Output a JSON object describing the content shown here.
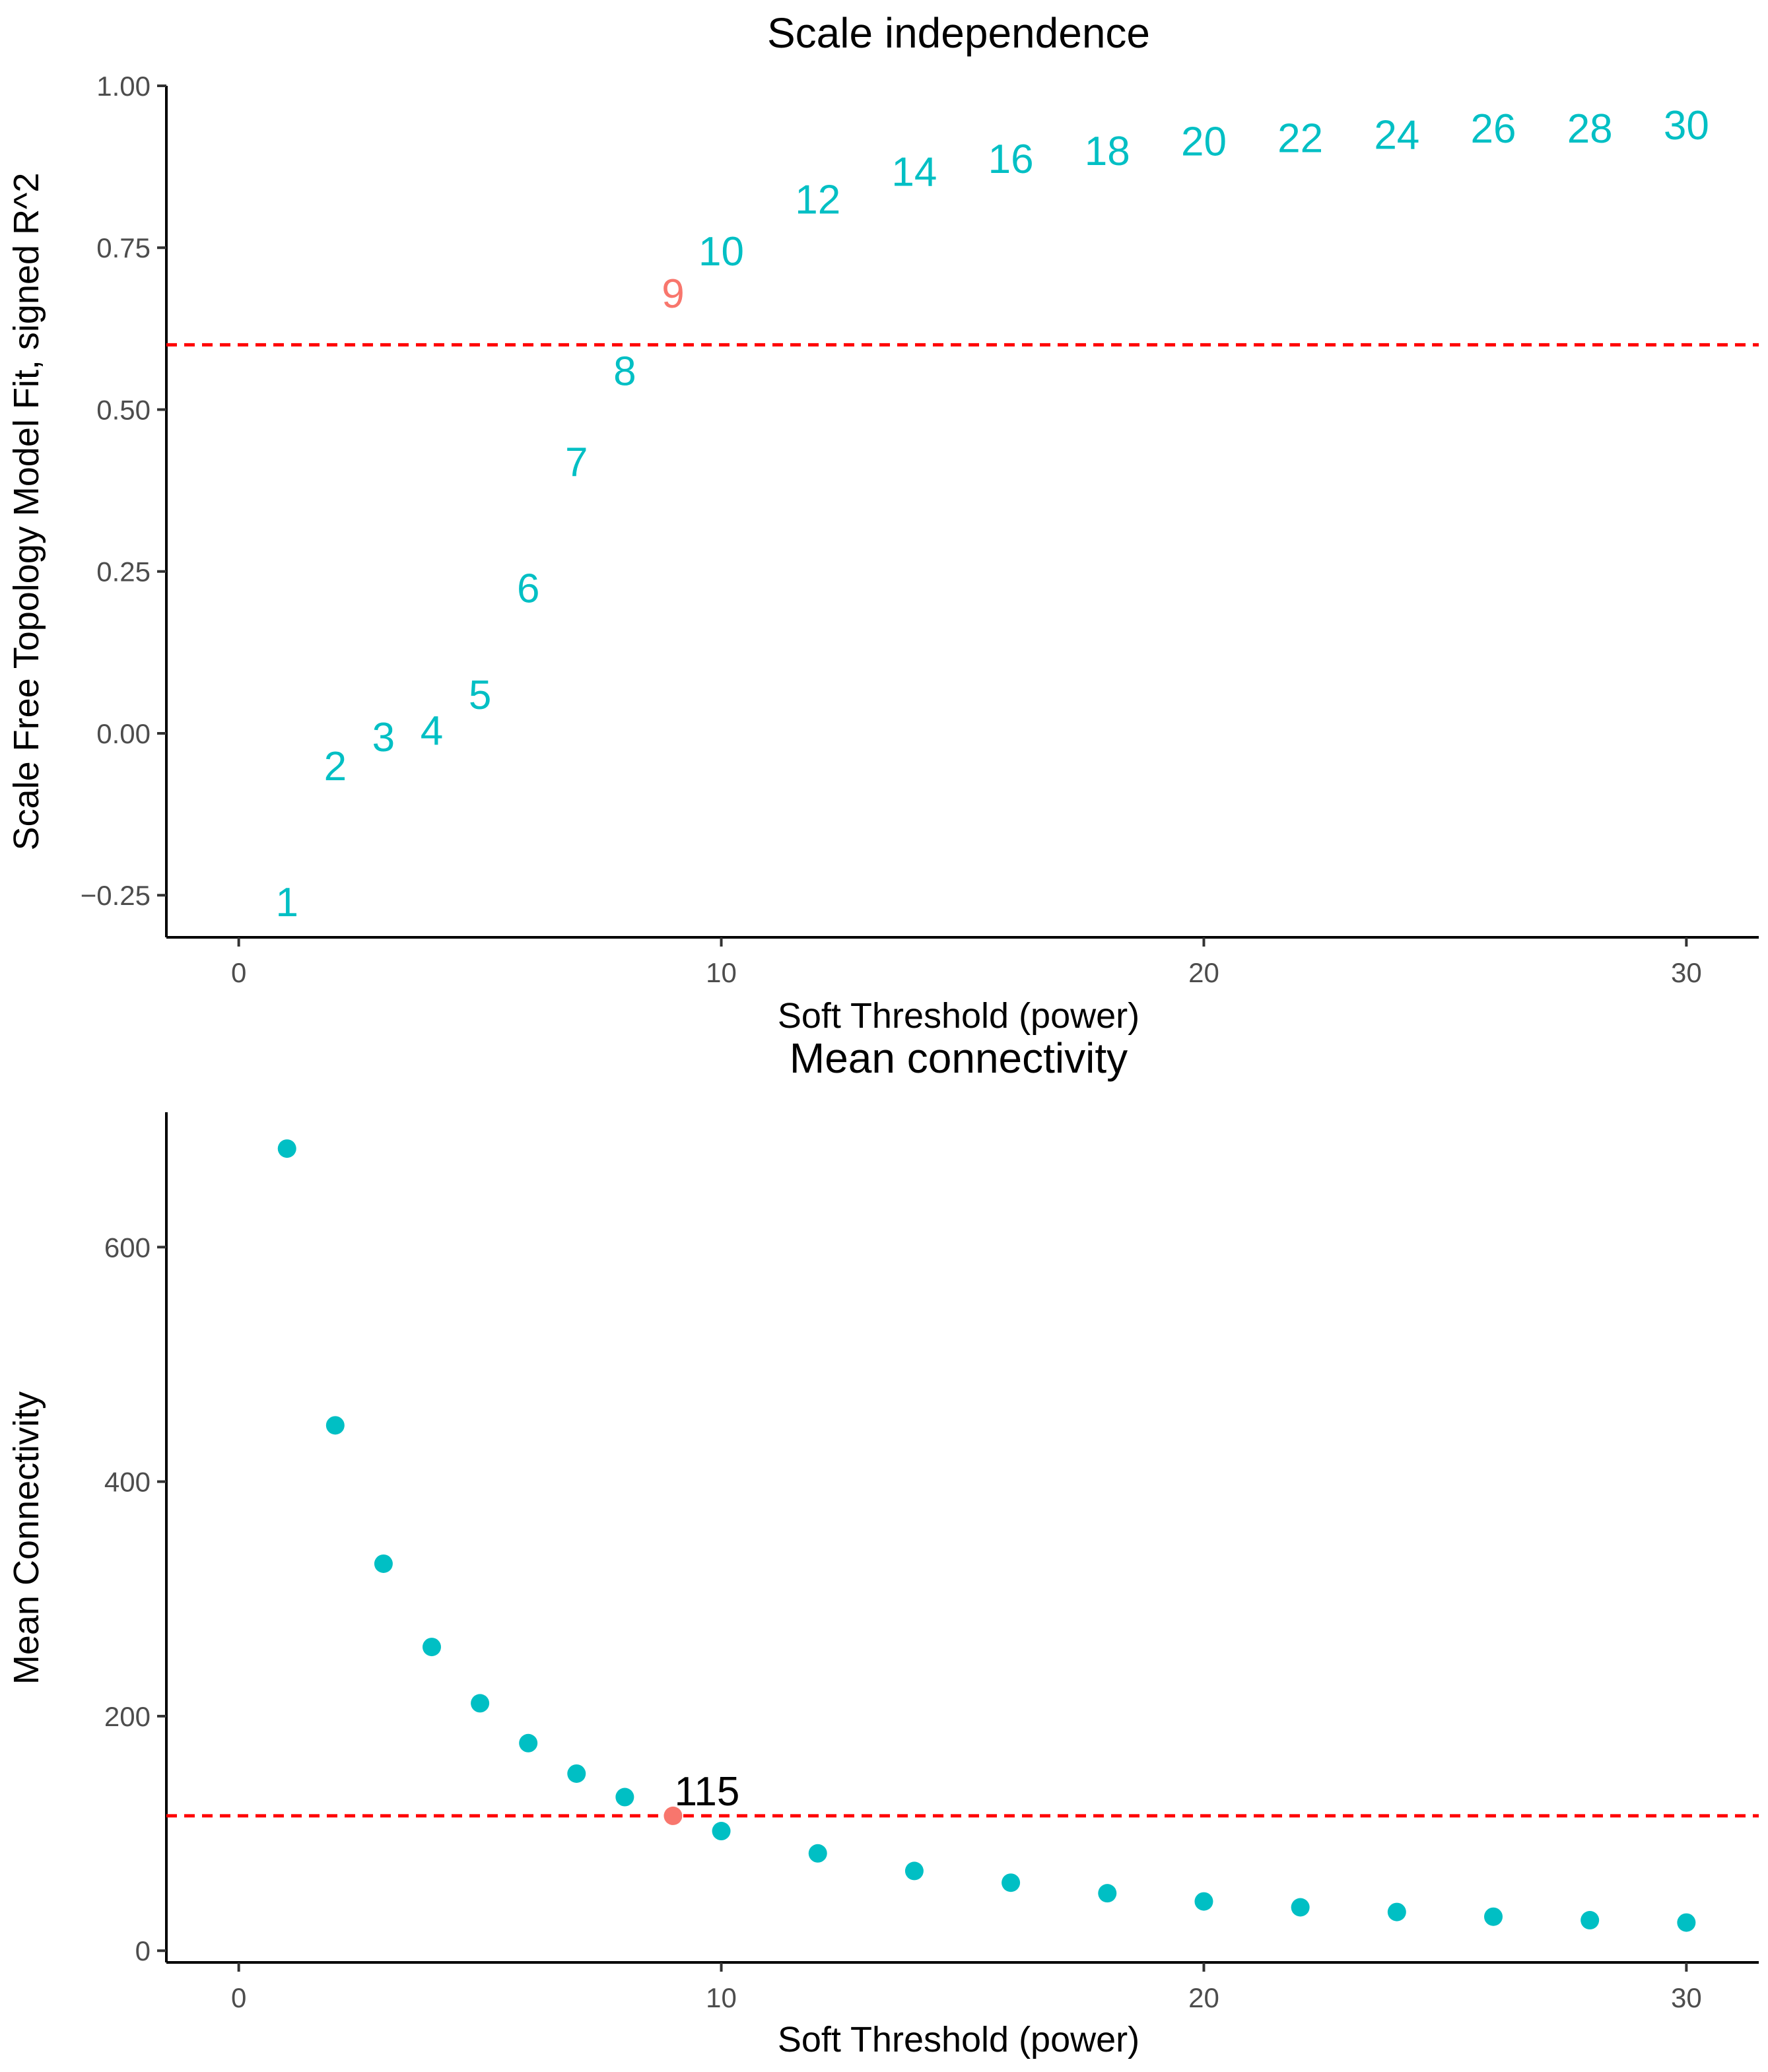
{
  "chart_data": [
    {
      "type": "scatter",
      "title": "Scale independence",
      "xlabel": "Soft Threshold (power)",
      "ylabel": "Scale Free Topology Model Fit, signed R^2",
      "xlim": [
        -1.5,
        31.5
      ],
      "ylim": [
        -0.315,
        1.0
      ],
      "xticks": [
        0,
        10,
        20,
        30
      ],
      "xtick_labels": [
        "0",
        "10",
        "20",
        "30"
      ],
      "yticks": [
        -0.25,
        0.0,
        0.25,
        0.5,
        0.75,
        1.0
      ],
      "ytick_labels": [
        "−0.25",
        "0.00",
        "0.25",
        "0.50",
        "0.75",
        "1.00"
      ],
      "marker": "text",
      "x": [
        1,
        2,
        3,
        4,
        5,
        6,
        7,
        8,
        9,
        10,
        12,
        14,
        16,
        18,
        20,
        22,
        24,
        26,
        28,
        30
      ],
      "y": [
        -0.26,
        -0.05,
        -0.005,
        0.005,
        0.06,
        0.225,
        0.42,
        0.56,
        0.68,
        0.745,
        0.825,
        0.868,
        0.888,
        0.9,
        0.915,
        0.92,
        0.925,
        0.935,
        0.935,
        0.94
      ],
      "labels": [
        "1",
        "2",
        "3",
        "4",
        "5",
        "6",
        "7",
        "8",
        "9",
        "10",
        "12",
        "14",
        "16",
        "18",
        "20",
        "22",
        "24",
        "26",
        "28",
        "30"
      ],
      "highlight_index": 8,
      "threshold": 0.6,
      "colors": {
        "points": "#00bfc4",
        "highlight": "#f8766d",
        "threshold": "#ff0000"
      },
      "grid": false
    },
    {
      "type": "scatter",
      "title": "Mean connectivity",
      "xlabel": "Soft Threshold (power)",
      "ylabel": "Mean Connectivity",
      "xlim": [
        -1.5,
        31.5
      ],
      "ylim": [
        -10,
        715
      ],
      "xticks": [
        0,
        10,
        20,
        30
      ],
      "xtick_labels": [
        "0",
        "10",
        "20",
        "30"
      ],
      "yticks": [
        0,
        200,
        400,
        600
      ],
      "ytick_labels": [
        "0",
        "200",
        "400",
        "600"
      ],
      "marker": "point",
      "x": [
        1,
        2,
        3,
        4,
        5,
        6,
        7,
        8,
        9,
        10,
        12,
        14,
        16,
        18,
        20,
        22,
        24,
        26,
        28,
        30
      ],
      "y": [
        684,
        448,
        330,
        259,
        211,
        177,
        151,
        131,
        115,
        102,
        83,
        68,
        58,
        49,
        42,
        37,
        33,
        29,
        26,
        24
      ],
      "highlight_index": 8,
      "threshold": 115,
      "annotation": "115",
      "colors": {
        "points": "#00bfc4",
        "highlight": "#f8766d",
        "threshold": "#ff0000"
      },
      "grid": false
    }
  ]
}
